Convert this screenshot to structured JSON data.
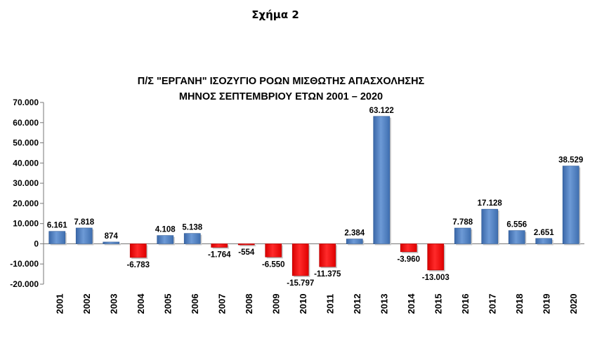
{
  "figure_caption": "Σχήμα 2",
  "chart_data": {
    "type": "bar",
    "title": "Π/Σ \"ΕΡΓΑΝΗ\" ΙΣΟΖΥΓΙΟ ΡΟΩΝ ΜΙΣΘΩΤΗΣ ΑΠΑΣΧΟΛΗΣΗΣ",
    "subtitle": "ΜΗΝΟΣ ΣΕΠΤΕΜΒΡΙΟΥ ΕΤΩΝ 2001 – 2020",
    "xlabel": "",
    "ylabel": "",
    "categories": [
      "2001",
      "2002",
      "2003",
      "2004",
      "2005",
      "2006",
      "2007",
      "2008",
      "2009",
      "2010",
      "2011",
      "2012",
      "2013",
      "2014",
      "2015",
      "2016",
      "2017",
      "2018",
      "2019",
      "2020"
    ],
    "values": [
      6161,
      7818,
      874,
      -6783,
      4108,
      5138,
      -1764,
      -554,
      -6550,
      -15797,
      -11375,
      2384,
      63122,
      -3960,
      -13003,
      7788,
      17128,
      6556,
      2651,
      38529
    ],
    "data_labels": [
      "6.161",
      "7.818",
      "874",
      "-6.783",
      "4.108",
      "5.138",
      "-1.764",
      "-554",
      "-6.550",
      "-15.797",
      "-11.375",
      "2.384",
      "63.122",
      "-3.960",
      "-13.003",
      "7.788",
      "17.128",
      "6.556",
      "2.651",
      "38.529"
    ],
    "ylim": [
      -20000,
      70000
    ],
    "yticks": [
      -20000,
      -10000,
      0,
      10000,
      20000,
      30000,
      40000,
      50000,
      60000,
      70000
    ],
    "ytick_labels": [
      "-20.000",
      "-10.000",
      "0",
      "10.000",
      "20.000",
      "30.000",
      "40.000",
      "50.000",
      "60.000",
      "70.000"
    ],
    "grid": false,
    "legend": "none",
    "colors": {
      "positive": "#4f81bd",
      "negative": "#ff0000"
    }
  }
}
